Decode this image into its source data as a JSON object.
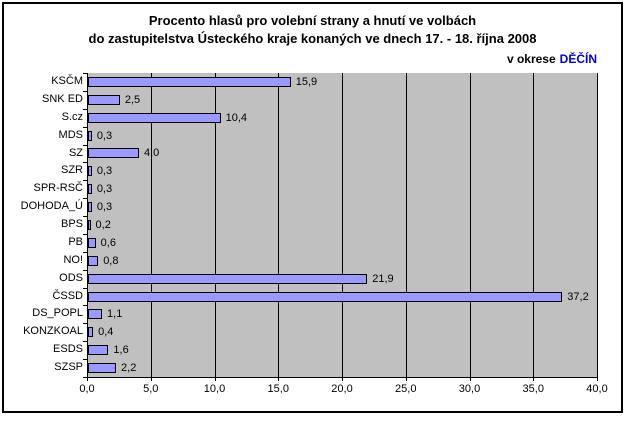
{
  "title": {
    "line1": "Procento hlasů pro volební strany a hnutí ve volbách",
    "line2": "do zastupitelstva Ústeckého kraje konaných ve dnech 17. - 18. října 2008"
  },
  "region": {
    "prefix": "v okrese",
    "name": "DĚČÍN"
  },
  "chart_data": {
    "type": "bar",
    "orientation": "horizontal",
    "title": "Procento hlasů pro volební strany a hnutí ve volbách do zastupitelstva Ústeckého kraje konaných ve dnech 17. - 18. října 2008",
    "subtitle": "v okrese DĚČÍN",
    "categories": [
      "KSČM",
      "SNK ED",
      "S.cz",
      "MDS",
      "SZ",
      "SZR",
      "SPR-RSČ",
      "DOHODA_Ú",
      "BPS",
      "PB",
      "NO!",
      "ODS",
      "ČSSD",
      "DS_POPL",
      "KONZKOAL",
      "ESDS",
      "SZSP"
    ],
    "values": [
      15.9,
      2.5,
      10.4,
      0.3,
      4.0,
      0.3,
      0.3,
      0.3,
      0.2,
      0.6,
      0.8,
      21.9,
      37.2,
      1.1,
      0.4,
      1.6,
      2.2
    ],
    "value_labels": [
      "15,9",
      "2,5",
      "10,4",
      "0,3",
      "4,0",
      "0,3",
      "0,3",
      "0,3",
      "0,2",
      "0,6",
      "0,8",
      "21,9",
      "37,2",
      "1,1",
      "0,4",
      "1,6",
      "2,2"
    ],
    "xlabel": "",
    "ylabel": "",
    "xlim": [
      0,
      40
    ],
    "xticks": [
      0,
      5,
      10,
      15,
      20,
      25,
      30,
      35,
      40
    ],
    "xtick_labels": [
      "0,0",
      "5,0",
      "10,0",
      "15,0",
      "20,0",
      "25,0",
      "30,0",
      "35,0",
      "40,0"
    ],
    "grid": true,
    "legend": "none",
    "colors": {
      "bar_fill": "#9999FF",
      "bar_border": "#000000",
      "plot_bg": "#C0C0C0",
      "grid_color": "#000000",
      "region_name": "#0000CC",
      "text": "#000000",
      "frame_border": "#000000",
      "background": "#FFFFFF"
    }
  }
}
